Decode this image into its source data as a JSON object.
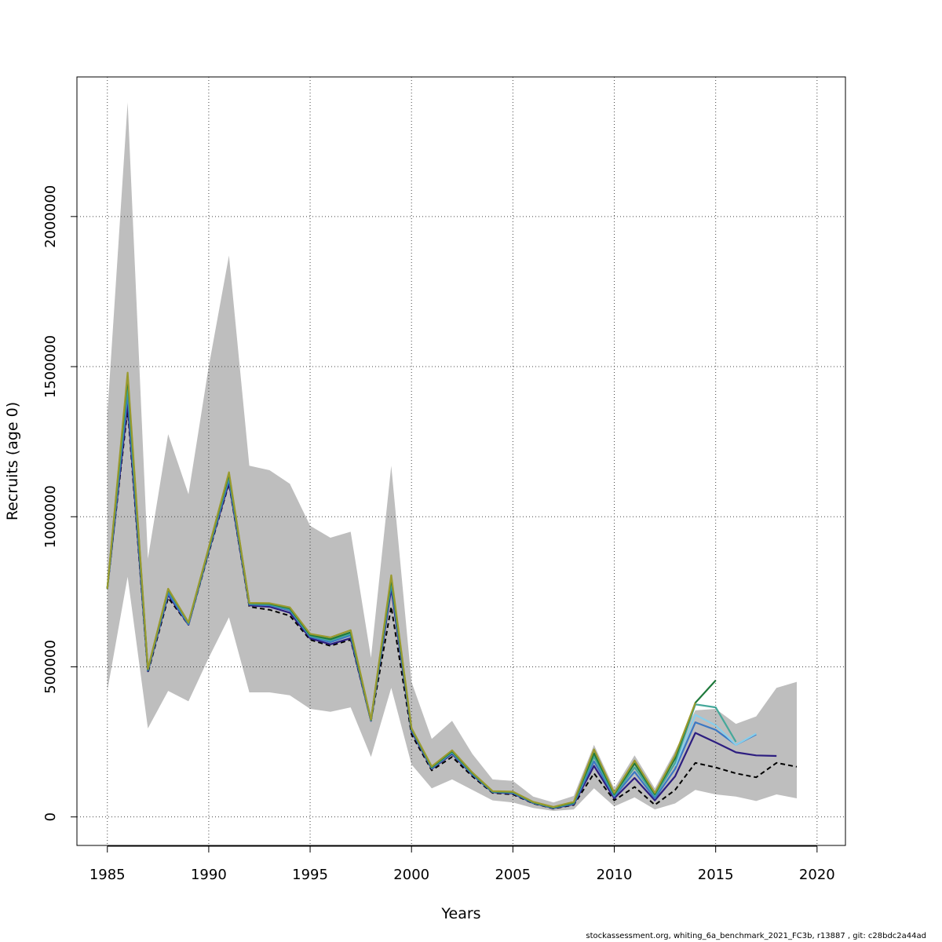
{
  "footer_text": "stockassessment.org, whiting_6a_benchmark_2021_FC3b, r13887 , git: c28bdc2a44ad",
  "chart_data": {
    "type": "line",
    "title": "",
    "xlabel": "Years",
    "ylabel": "Recruits (age 0)",
    "xlim": [
      1983.5,
      2021.4
    ],
    "ylim": [
      -95000,
      2465000
    ],
    "xticks": [
      1985,
      1990,
      1995,
      2000,
      2005,
      2010,
      2015,
      2020
    ],
    "xtick_labels": [
      "1985",
      "1990",
      "1995",
      "2000",
      "2005",
      "2010",
      "2015",
      "2020"
    ],
    "yticks": [
      0,
      500000,
      1000000,
      1500000,
      2000000
    ],
    "ytick_labels": [
      "0",
      "500000",
      "1000000",
      "1500000",
      "2000000"
    ],
    "grid": true,
    "grid_style": "dotted",
    "confidence_band": {
      "color": "#bebebe",
      "x": [
        1985,
        1986,
        1987,
        1988,
        1989,
        1990,
        1991,
        1992,
        1993,
        1994,
        1995,
        1996,
        1997,
        1998,
        1999,
        2000,
        2001,
        2002,
        2003,
        2004,
        2005,
        2006,
        2007,
        2008,
        2009,
        2010,
        2011,
        2012,
        2013,
        2014,
        2015,
        2016,
        2017,
        2018,
        2019
      ],
      "upper": [
        1340000,
        2380000,
        860000,
        1275000,
        1075000,
        1500000,
        1870000,
        1170000,
        1155000,
        1110000,
        970000,
        930000,
        950000,
        530000,
        1170000,
        450000,
        260000,
        320000,
        210000,
        125000,
        120000,
        68000,
        48000,
        70000,
        240000,
        95000,
        205000,
        95000,
        220000,
        355000,
        360000,
        310000,
        335000,
        430000,
        450000
      ],
      "lower": [
        420000,
        800000,
        295000,
        420000,
        385000,
        530000,
        665000,
        415000,
        415000,
        405000,
        360000,
        350000,
        365000,
        200000,
        430000,
        175000,
        95000,
        125000,
        90000,
        55000,
        48000,
        30000,
        20000,
        25000,
        95000,
        35000,
        65000,
        25000,
        45000,
        90000,
        75000,
        68000,
        53000,
        75000,
        62000
      ]
    },
    "series": [
      {
        "color": "#000000",
        "dashed": true,
        "x": [
          1985,
          1986,
          1987,
          1988,
          1989,
          1990,
          1991,
          1992,
          1993,
          1994,
          1995,
          1996,
          1997,
          1998,
          1999,
          2000,
          2001,
          2002,
          2003,
          2004,
          2005,
          2006,
          2007,
          2008,
          2009,
          2010,
          2011,
          2012,
          2013,
          2014,
          2015,
          2016,
          2017,
          2018,
          2019
        ],
        "values": [
          760000,
          1360000,
          480000,
          730000,
          640000,
          880000,
          1110000,
          700000,
          690000,
          670000,
          590000,
          570000,
          590000,
          320000,
          700000,
          275000,
          155000,
          200000,
          135000,
          80000,
          75000,
          45000,
          28000,
          40000,
          145000,
          55000,
          100000,
          40000,
          90000,
          180000,
          165000,
          145000,
          132000,
          180000,
          167000
        ]
      },
      {
        "color": "#2d1e80",
        "x": [
          1985,
          1986,
          1987,
          1988,
          1989,
          1990,
          1991,
          1992,
          1993,
          1994,
          1995,
          1996,
          1997,
          1998,
          1999,
          2000,
          2001,
          2002,
          2003,
          2004,
          2005,
          2006,
          2007,
          2008,
          2009,
          2010,
          2011,
          2012,
          2013,
          2014,
          2015,
          2016,
          2017,
          2018
        ],
        "values": [
          760000,
          1380000,
          485000,
          740000,
          640000,
          885000,
          1115000,
          705000,
          700000,
          680000,
          595000,
          575000,
          595000,
          320000,
          760000,
          285000,
          160000,
          210000,
          140000,
          82000,
          78000,
          46000,
          29000,
          42000,
          170000,
          62000,
          130000,
          55000,
          135000,
          280000,
          248000,
          215000,
          205000,
          203000
        ]
      },
      {
        "color": "#3b78c4",
        "x": [
          1985,
          1986,
          1987,
          1988,
          1989,
          1990,
          1991,
          1992,
          1993,
          1994,
          1995,
          1996,
          1997,
          1998,
          1999,
          2000,
          2001,
          2002,
          2003,
          2004,
          2005,
          2006,
          2007,
          2008,
          2009,
          2010,
          2011,
          2012,
          2013,
          2014,
          2015,
          2016,
          2017
        ],
        "values": [
          760000,
          1410000,
          488000,
          745000,
          642000,
          888000,
          1125000,
          708000,
          705000,
          688000,
          600000,
          582000,
          605000,
          321000,
          775000,
          290000,
          162000,
          213000,
          142000,
          83000,
          80000,
          47000,
          30000,
          44000,
          185000,
          68000,
          150000,
          62000,
          160000,
          315000,
          290000,
          240000,
          275000
        ]
      },
      {
        "color": "#87ceeb",
        "x": [
          2013,
          2014,
          2015,
          2016,
          2017
        ],
        "values": [
          170000,
          340000,
          305000,
          240000,
          278000
        ]
      },
      {
        "color": "#45a89a",
        "x": [
          1985,
          1986,
          1987,
          1988,
          1989,
          1990,
          1991,
          1992,
          1993,
          1994,
          1995,
          1996,
          1997,
          1998,
          1999,
          2000,
          2001,
          2002,
          2003,
          2004,
          2005,
          2006,
          2007,
          2008,
          2009,
          2010,
          2011,
          2012,
          2013,
          2014,
          2015,
          2016
        ],
        "values": [
          760000,
          1440000,
          490000,
          755000,
          645000,
          892000,
          1135000,
          710000,
          708000,
          692000,
          603000,
          588000,
          610000,
          322000,
          785000,
          292000,
          164000,
          216000,
          144000,
          84000,
          82000,
          48000,
          31000,
          46000,
          200000,
          72000,
          165000,
          70000,
          180000,
          375000,
          365000,
          250000
        ]
      },
      {
        "color": "#1f7a3c",
        "x": [
          1985,
          1986,
          1987,
          1988,
          1989,
          1990,
          1991,
          1992,
          1993,
          1994,
          1995,
          1996,
          1997,
          1998,
          1999,
          2000,
          2001,
          2002,
          2003,
          2004,
          2005,
          2006,
          2007,
          2008,
          2009,
          2010,
          2011,
          2012,
          2013,
          2014,
          2015
        ],
        "values": [
          760000,
          1465000,
          492000,
          758000,
          647000,
          895000,
          1142000,
          712000,
          710000,
          695000,
          606000,
          592000,
          615000,
          323000,
          795000,
          294000,
          166000,
          219000,
          146000,
          85000,
          83000,
          49000,
          32000,
          48000,
          212000,
          76000,
          178000,
          76000,
          195000,
          380000,
          455000
        ]
      },
      {
        "color": "#9a9a2e",
        "x": [
          1985,
          1986,
          1987,
          1988,
          1989,
          1990,
          1991,
          1992,
          1993,
          1994,
          1995,
          1996,
          1997,
          1998,
          1999,
          2000,
          2001,
          2002,
          2003,
          2004,
          2005,
          2006,
          2007,
          2008,
          2009,
          2010,
          2011,
          2012,
          2013,
          2014
        ],
        "values": [
          760000,
          1480000,
          493000,
          760000,
          648000,
          897000,
          1148000,
          713000,
          712000,
          698000,
          610000,
          598000,
          622000,
          324000,
          805000,
          296000,
          168000,
          222000,
          148000,
          86000,
          84000,
          50000,
          33000,
          50000,
          225000,
          80000,
          188000,
          80000,
          205000,
          380000
        ]
      }
    ]
  }
}
